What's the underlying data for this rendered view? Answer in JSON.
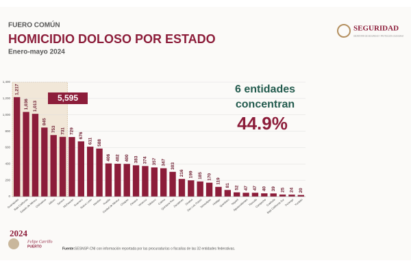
{
  "chart_data": {
    "type": "bar",
    "kicker": "FUERO COMÚN",
    "title": "HOMICIDIO DOLOSO POR ESTADO",
    "subtitle": "Enero-mayo 2024",
    "categories": [
      "Guanajuato",
      "Baja California",
      "Estado de México",
      "Chihuahua",
      "Jalisco",
      "Sonora",
      "Michoacán",
      "Guerrero",
      "Nuevo León",
      "Morelos",
      "Puebla",
      "Ciudad de México",
      "Chiapas",
      "Oaxaca",
      "Veracruz",
      "Tabasco",
      "Colima",
      "Quintana Roo",
      "Zacatecas",
      "Sinaloa",
      "San Luis Potosí",
      "Tamaulipas",
      "Hidalgo",
      "Querétaro",
      "Nayarit",
      "Aguascalientes",
      "Tlaxcala",
      "Campeche",
      "Coahuila",
      "Baja California Sur",
      "Durango",
      "Yucatán"
    ],
    "values": [
      1217,
      1036,
      1013,
      845,
      753,
      731,
      729,
      676,
      611,
      588,
      406,
      402,
      400,
      383,
      374,
      357,
      347,
      303,
      216,
      199,
      185,
      170,
      119,
      81,
      52,
      47,
      47,
      40,
      39,
      25,
      24,
      20
    ],
    "value_labels": [
      "1,217",
      "1,036",
      "1,013",
      "845",
      "753",
      "731",
      "729",
      "676",
      "611",
      "588",
      "406",
      "402",
      "400",
      "383",
      "374",
      "357",
      "347",
      "303",
      "216",
      "199",
      "185",
      "170",
      "119",
      "81",
      "52",
      "47",
      "47",
      "40",
      "39",
      "25",
      "24",
      "20"
    ],
    "color": "#8c1d3a",
    "ylim": [
      0,
      1400
    ],
    "yticks": [
      0,
      200,
      400,
      600,
      800,
      {
        "value": 1000,
        "label": "1,000"
      },
      {
        "value": 1200,
        "label": "1,200"
      },
      {
        "value": 1400,
        "label": "1,400"
      }
    ],
    "grid": true,
    "highlight_total": "5,595",
    "annotation_lines": [
      "6 entidades",
      "concentran"
    ],
    "annotation_percent": "44.9%",
    "source_label": "Fuente:",
    "source": "SESNSP-CNI con información reportada por las procuradurías o fiscalías de las 32 entidades federativas.",
    "logo": "SEGURIDAD",
    "logo_caption": "SECRETARÍA DE SEGURIDAD Y PROTECCIÓN CIUDADANA",
    "footer_logo_year": "2024",
    "footer_logo_name": "Felipe Carrillo",
    "footer_logo_place": "PUERTO"
  }
}
